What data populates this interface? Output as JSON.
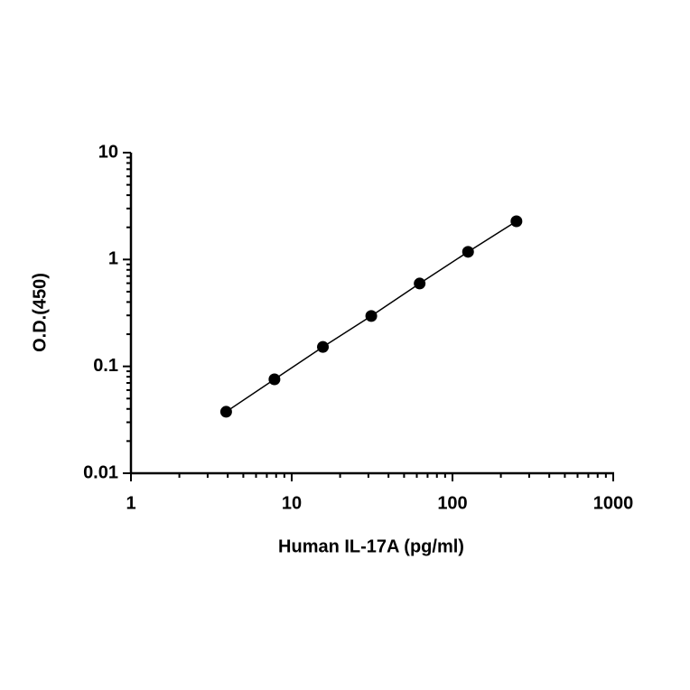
{
  "chart_data": {
    "type": "scatter",
    "x_label": "Human IL-17A (pg/ml)",
    "y_label": "O.D.(450)",
    "x": [
      3.91,
      7.81,
      15.63,
      31.25,
      62.5,
      125,
      250
    ],
    "values": [
      0.0376,
      0.0757,
      0.152,
      0.296,
      0.596,
      1.18,
      2.28
    ],
    "color": "#000000",
    "line": true,
    "xscale": "log",
    "yscale": "log",
    "xlim": [
      1,
      1000
    ],
    "xticks": [
      1,
      10,
      100,
      1000
    ],
    "ylim": [
      0.01,
      10
    ],
    "yticks": [
      0.01,
      0.1,
      1,
      10
    ]
  }
}
